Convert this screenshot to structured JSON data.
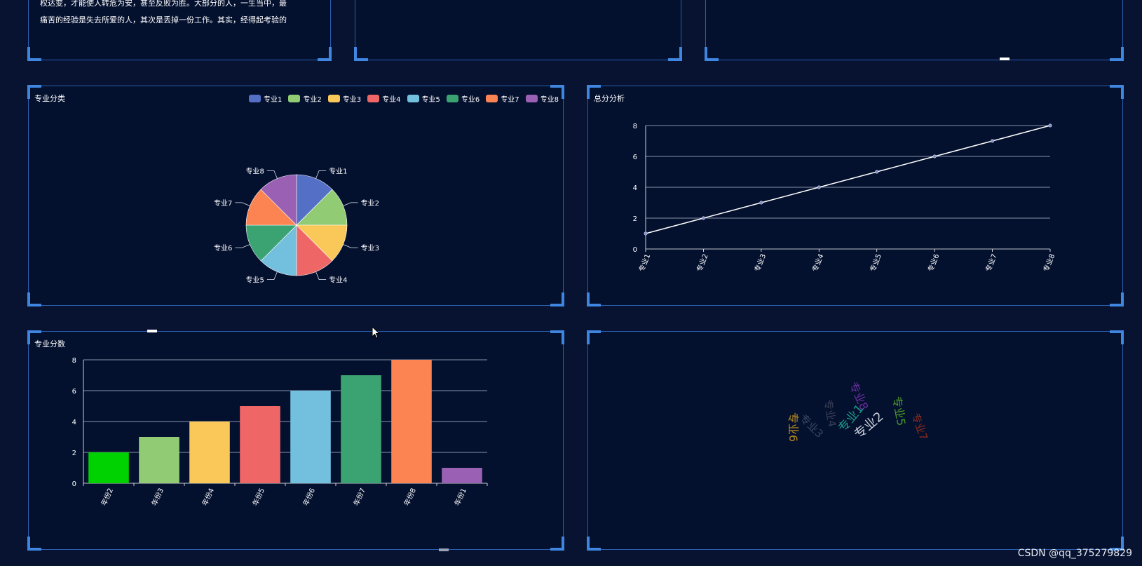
{
  "top_panel": {
    "lines": [
      "权达变，才能使人转危为安，甚至反败为胜。大部分的人，一生当中，最",
      "痛苦的经验是失去所爱的人，其次是丢掉一份工作。其实，经得起考验的"
    ]
  },
  "pie_panel": {
    "title": "专业分类",
    "legend": [
      {
        "label": "专业1",
        "color": "#5470c6"
      },
      {
        "label": "专业2",
        "color": "#91cc75"
      },
      {
        "label": "专业3",
        "color": "#fac858"
      },
      {
        "label": "专业4",
        "color": "#ee6666"
      },
      {
        "label": "专业5",
        "color": "#73c0de"
      },
      {
        "label": "专业6",
        "color": "#3ba272"
      },
      {
        "label": "专业7",
        "color": "#fc8452"
      },
      {
        "label": "专业8",
        "color": "#9a60b4"
      }
    ]
  },
  "line_panel": {
    "title": "总分分析"
  },
  "bar_panel": {
    "title": "专业分数"
  },
  "word_cloud": {
    "words": [
      {
        "text": "专业8",
        "color": "#6a2fa0"
      },
      {
        "text": "专业4",
        "color": "#3a3f55"
      },
      {
        "text": "专业1",
        "color": "#1f9a8a"
      },
      {
        "text": "专业3",
        "color": "#3b4866"
      },
      {
        "text": "专业2",
        "color": "#c9cfd8"
      },
      {
        "text": "专业5",
        "color": "#4c9a2a"
      },
      {
        "text": "专业6",
        "color": "#b58a1e"
      },
      {
        "text": "专业7",
        "color": "#8a2d1e"
      }
    ]
  },
  "watermark": "CSDN @qq_375279829",
  "chart_data": [
    {
      "type": "pie",
      "title": "专业分类",
      "categories": [
        "专业1",
        "专业2",
        "专业3",
        "专业4",
        "专业5",
        "专业6",
        "专业7",
        "专业8"
      ],
      "values": [
        1,
        1,
        1,
        1,
        1,
        1,
        1,
        1
      ],
      "colors": [
        "#5470c6",
        "#91cc75",
        "#fac858",
        "#ee6666",
        "#73c0de",
        "#3ba272",
        "#fc8452",
        "#9a60b4"
      ],
      "legend": "top-right"
    },
    {
      "type": "line",
      "title": "总分分析",
      "categories": [
        "专业1",
        "专业2",
        "专业3",
        "专业4",
        "专业5",
        "专业6",
        "专业7",
        "专业8"
      ],
      "values": [
        1,
        2,
        3,
        4,
        5,
        6,
        7,
        8
      ],
      "ylim": [
        0,
        8
      ],
      "yticks": [
        0,
        2,
        4,
        6,
        8
      ],
      "grid": true,
      "color": "#ffffff"
    },
    {
      "type": "bar",
      "title": "专业分数",
      "categories": [
        "年份2",
        "年份3",
        "年份4",
        "年份5",
        "年份6",
        "年份7",
        "年份8",
        "年份1"
      ],
      "values": [
        2,
        3,
        4,
        5,
        6,
        7,
        8,
        1
      ],
      "colors": [
        "#00d100",
        "#91cc75",
        "#fac858",
        "#ee6666",
        "#73c0de",
        "#3ba272",
        "#fc8452",
        "#9a60b4"
      ],
      "ylim": [
        0,
        8
      ],
      "yticks": [
        0,
        2,
        4,
        6,
        8
      ],
      "grid": true
    }
  ]
}
